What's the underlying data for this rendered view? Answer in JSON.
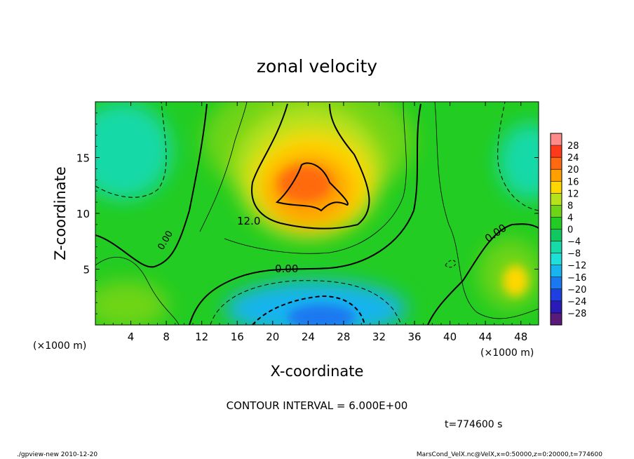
{
  "chart_data": {
    "type": "heatmap",
    "title": "zonal velocity",
    "xlabel": "X-coordinate",
    "ylabel": "Z-coordinate",
    "x_unit_label": "(×1000 m)",
    "x_ticks": [
      4,
      8,
      12,
      16,
      20,
      24,
      28,
      32,
      36,
      40,
      44,
      48
    ],
    "y_ticks": [
      5,
      10,
      15
    ],
    "xlim": [
      0,
      50
    ],
    "ylim": [
      0,
      20
    ],
    "grid": false,
    "contour_interval_text": "CONTOUR INTERVAL = 6.000E+00",
    "time_text": "t=774600 s",
    "contour_labels": [
      "0.00",
      "12.0",
      "0.00",
      "0.00"
    ],
    "colorbar": {
      "min": -32,
      "max": 32,
      "tick_labels": [
        "28",
        "24",
        "20",
        "16",
        "12",
        "8",
        "4",
        "0",
        "−4",
        "−8",
        "−12",
        "−16",
        "−20",
        "−24",
        "−28"
      ],
      "band_colors": [
        "#5a1a7a",
        "#2a1ab8",
        "#1f3fe0",
        "#1a78f0",
        "#17b4f0",
        "#1ee0d8",
        "#18d9a8",
        "#10c860",
        "#22cc22",
        "#6ed418",
        "#b5e21a",
        "#ffd700",
        "#ffa000",
        "#ff6a10",
        "#ff3a1a",
        "#ff8a8a"
      ]
    },
    "field_features": [
      {
        "kind": "max",
        "x": 24,
        "z": 12.5,
        "value": 22
      },
      {
        "kind": "min",
        "x": 26,
        "z": 1,
        "value": -14
      },
      {
        "kind": "low",
        "x": 2,
        "z": 14,
        "value": -6
      },
      {
        "kind": "low",
        "x": 49,
        "z": 14,
        "value": -4
      },
      {
        "kind": "high",
        "x": 46,
        "z": 5,
        "value": 10
      },
      {
        "kind": "high",
        "x": 4,
        "z": 2,
        "value": 8
      }
    ]
  },
  "footer": {
    "left": "./gpview-new   2010-12-20",
    "right": "MarsCond_VelX.nc@VelX,x=0:50000,z=0:20000,t=774600"
  }
}
